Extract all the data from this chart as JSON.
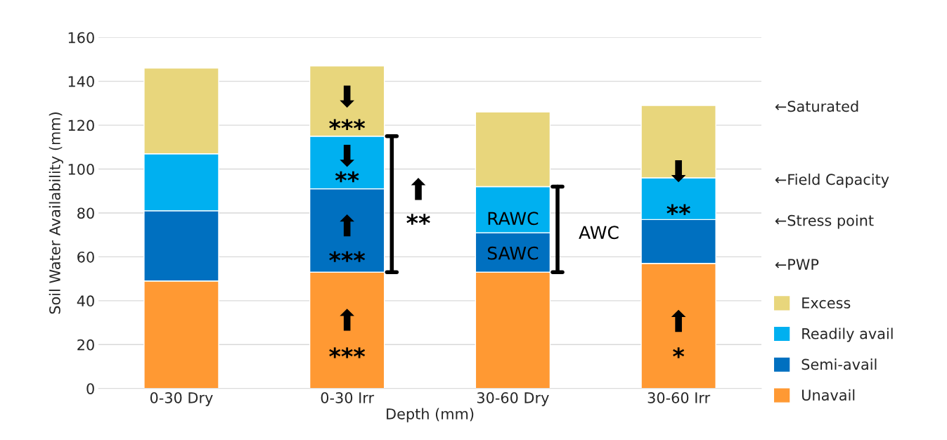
{
  "chart_data": {
    "type": "bar",
    "stacked": true,
    "xlabel": "Depth (mm)",
    "ylabel": "Soil Water Availability (mm)",
    "categories": [
      "0-30 Dry",
      "0-30 Irr",
      "30-60 Dry",
      "30-60 Irr"
    ],
    "series": [
      {
        "name": "Unavail",
        "color": "#ff9933",
        "values": [
          49,
          53,
          53,
          57
        ]
      },
      {
        "name": "Semi-avail",
        "color": "#0070c0",
        "values": [
          32,
          38,
          18,
          20
        ]
      },
      {
        "name": "Readily avail",
        "color": "#00b0f0",
        "values": [
          26,
          24,
          21,
          19
        ]
      },
      {
        "name": "Excess",
        "color": "#e8d67c",
        "values": [
          39,
          32,
          34,
          33
        ]
      }
    ],
    "ylim": [
      0,
      160
    ],
    "yticks": [
      0,
      20,
      40,
      60,
      80,
      100,
      120,
      140,
      160
    ],
    "grid": "y",
    "legend": "right",
    "annotations": [
      "⬇",
      "***",
      "⬇",
      "**",
      "⬆",
      "***",
      "⬆",
      "***",
      "⬆",
      "**",
      "RAWC",
      "SAWC",
      "AWC",
      "⬇",
      "**",
      "⬆",
      "*",
      "←Saturated",
      "←Field Capacity",
      "←Stress point",
      "←PWP"
    ]
  }
}
